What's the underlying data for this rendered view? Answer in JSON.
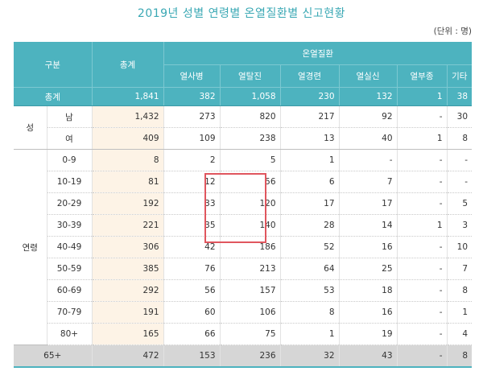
{
  "title": "2019년 성별 연령별 온열질환별 신고현황",
  "unit": "(단위 : 명)",
  "header": {
    "category": "구분",
    "total": "총계",
    "disease_group": "온열질환",
    "diseases": [
      "열사병",
      "열탈진",
      "열경련",
      "열실신",
      "열부종",
      "기타"
    ]
  },
  "colors": {
    "header": "#4db3bf",
    "total_column": "#fdf3e6",
    "highlight": "#e0565e",
    "gray_row": "#d6d6d6"
  },
  "total_row": {
    "label": "총계",
    "values": [
      "1,841",
      "382",
      "1,058",
      "230",
      "132",
      "1",
      "38"
    ]
  },
  "groups": {
    "sex": "성",
    "age": "연령"
  },
  "sex_rows": [
    {
      "label": "남",
      "values": [
        "1,432",
        "273",
        "820",
        "217",
        "92",
        "-",
        "30"
      ]
    },
    {
      "label": "여",
      "values": [
        "409",
        "109",
        "238",
        "13",
        "40",
        "1",
        "8"
      ]
    }
  ],
  "age_rows": [
    {
      "label": "0-9",
      "values": [
        "8",
        "2",
        "5",
        "1",
        "-",
        "-",
        "-"
      ]
    },
    {
      "label": "10-19",
      "values": [
        "81",
        "12",
        "56",
        "6",
        "7",
        "-",
        "-"
      ]
    },
    {
      "label": "20-29",
      "values": [
        "192",
        "33",
        "120",
        "17",
        "17",
        "-",
        "5"
      ]
    },
    {
      "label": "30-39",
      "values": [
        "221",
        "35",
        "140",
        "28",
        "14",
        "1",
        "3"
      ]
    },
    {
      "label": "40-49",
      "values": [
        "306",
        "42",
        "186",
        "52",
        "16",
        "-",
        "10"
      ]
    },
    {
      "label": "50-59",
      "values": [
        "385",
        "76",
        "213",
        "64",
        "25",
        "-",
        "7"
      ]
    },
    {
      "label": "60-69",
      "values": [
        "292",
        "56",
        "157",
        "53",
        "18",
        "-",
        "8"
      ]
    },
    {
      "label": "70-79",
      "values": [
        "191",
        "60",
        "106",
        "8",
        "16",
        "-",
        "1"
      ]
    },
    {
      "label": "80+",
      "values": [
        "165",
        "66",
        "75",
        "1",
        "19",
        "-",
        "4"
      ]
    }
  ],
  "elderly_row": {
    "label": "65+",
    "values": [
      "472",
      "153",
      "236",
      "32",
      "43",
      "-",
      "8"
    ]
  }
}
